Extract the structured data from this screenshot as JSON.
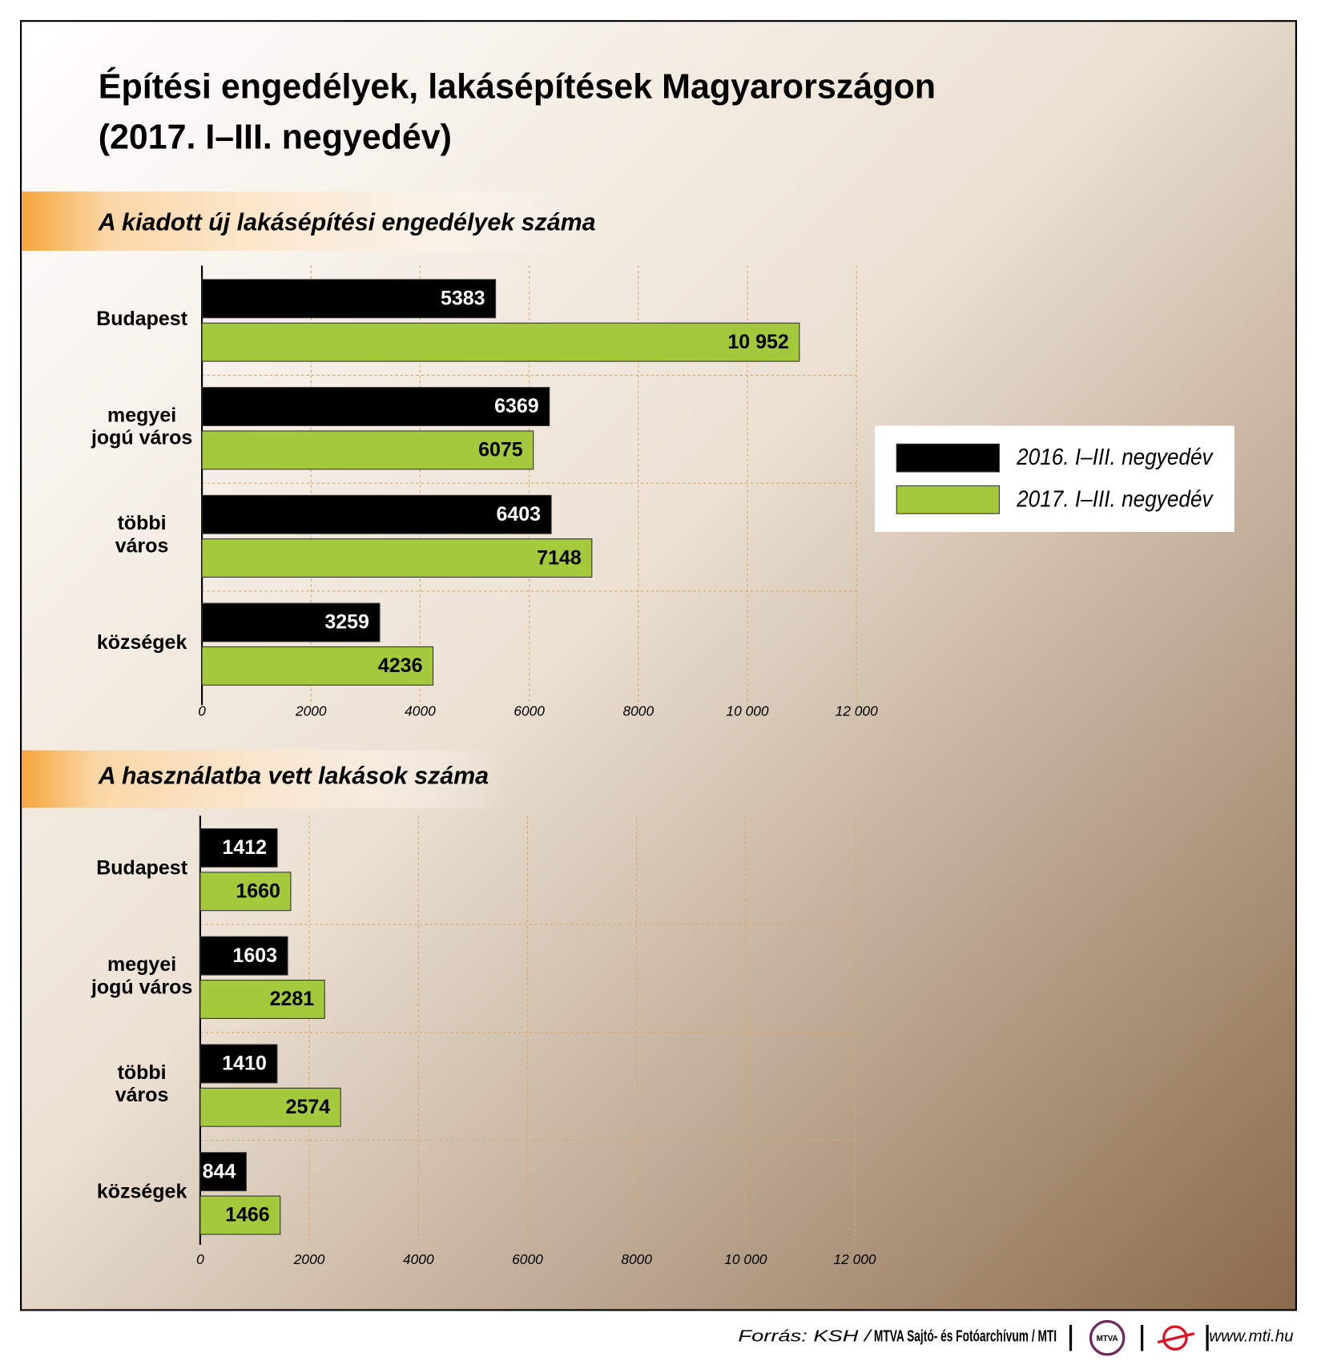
{
  "title": [
    "Építési engedélyek, lakásépítések Magyarországon",
    "(2017. I–III. negyedév)"
  ],
  "legend": {
    "position": "right",
    "entries": [
      {
        "name": "2016. I–III. negyedév",
        "color": "#000000"
      },
      {
        "name": "2017. I–III. negyedév",
        "color": "#a4c93c"
      }
    ]
  },
  "chart_data": [
    {
      "type": "bar",
      "orientation": "horizontal",
      "title": "A kiadott új lakásépítési engedélyek száma",
      "categories": [
        "Budapest",
        "megyei jogú város",
        "többi város",
        "községek"
      ],
      "series": [
        {
          "name": "2016. I–III. negyedév",
          "color": "#000000",
          "values": [
            5383,
            6369,
            6403,
            3259
          ]
        },
        {
          "name": "2017. I–III. negyedév",
          "color": "#a4c93c",
          "values": [
            10952,
            6075,
            7148,
            4236
          ],
          "value_labels": [
            "10 952",
            "6075",
            "7148",
            "4236"
          ]
        }
      ],
      "xlim": [
        0,
        12000
      ],
      "xticks": [
        0,
        2000,
        4000,
        6000,
        8000,
        {
          "value": 10000,
          "label": "10 000"
        },
        {
          "value": 12000,
          "label": "12 000"
        }
      ],
      "grid": true
    },
    {
      "type": "bar",
      "orientation": "horizontal",
      "title": "A használatba vett lakások száma",
      "categories": [
        "Budapest",
        "megyei jogú város",
        "többi város",
        "községek"
      ],
      "series": [
        {
          "color": "#000000",
          "values": [
            1412,
            1603,
            1410,
            844
          ]
        },
        {
          "color": "#a4c93c",
          "values": [
            1660,
            2281,
            2574,
            1466
          ]
        }
      ],
      "xlim": [
        0,
        12000
      ],
      "xticks": [
        0,
        2000,
        4000,
        6000,
        8000,
        {
          "value": 10000,
          "label": "10 000"
        },
        {
          "value": 12000,
          "label": "12 000"
        }
      ],
      "grid": true
    }
  ],
  "footer": {
    "source": "Forrás: KSH /",
    "credit": "MTVA Sajtó- és Fotóarchívum / MTI",
    "logo": "MTVA",
    "url": "www.mti.hu"
  }
}
